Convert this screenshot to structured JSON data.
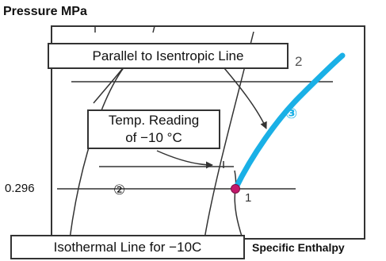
{
  "axes": {
    "y_label": "Pressure MPa",
    "x_label": "Specific Enthalpy",
    "pressure_tick": "0.296"
  },
  "callouts": {
    "isentropic": "Parallel to Isentropic Line",
    "temp_line1": "Temp. Reading",
    "temp_line2": "of −10 °C",
    "isothermal": "Isothermal Line for −10C"
  },
  "markers": {
    "state_1": "1",
    "state_2": "2",
    "circled_left": "②",
    "circled_right": "③"
  },
  "colors": {
    "compression_line": "#1ab0e6",
    "state_point": "#c2186b",
    "ink": "#333333"
  }
}
